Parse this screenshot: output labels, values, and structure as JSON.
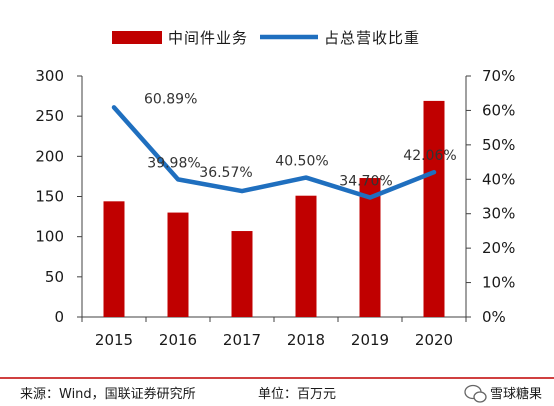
{
  "chart_data": {
    "type": "bar",
    "categories": [
      "2015",
      "2016",
      "2017",
      "2018",
      "2019",
      "2020"
    ],
    "series": [
      {
        "name": "中间件业务",
        "type": "bar",
        "axis": "left",
        "values": [
          144,
          130,
          107,
          151,
          173,
          269
        ]
      },
      {
        "name": "占总营收比重",
        "type": "line",
        "axis": "right",
        "values": [
          60.89,
          39.98,
          36.57,
          40.5,
          34.7,
          42.06
        ]
      }
    ],
    "line_labels": [
      "60.89%",
      "39.98%",
      "36.57%",
      "40.50%",
      "34.70%",
      "42.06%"
    ],
    "left_axis": {
      "ticks": [
        "0",
        "50",
        "100",
        "150",
        "200",
        "250",
        "300"
      ],
      "ylim": [
        0,
        300
      ]
    },
    "right_axis": {
      "ticks": [
        "0%",
        "10%",
        "20%",
        "30%",
        "40%",
        "50%",
        "60%",
        "70%"
      ],
      "ylim": [
        0,
        70
      ]
    },
    "legend_position": "top",
    "grid": false
  },
  "colors": {
    "bar": "#c00000",
    "line": "#1f6fbf",
    "footer_rule": "#c00000"
  },
  "footer": {
    "source": "来源：Wind，国联证券研究所",
    "unit": "单位：百万元",
    "watermark": "雪球糖果"
  }
}
